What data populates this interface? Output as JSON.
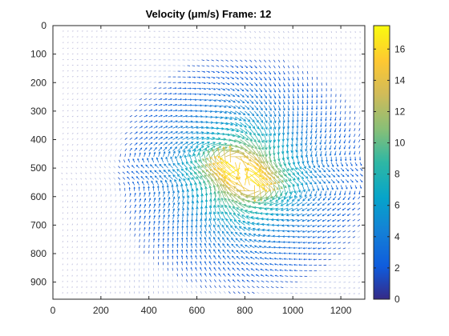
{
  "chart_data": {
    "type": "quiver",
    "title": "Velocity (μm/s) Frame: 12",
    "xlabel": "",
    "ylabel": "",
    "xlim": [
      0,
      1300
    ],
    "ylim": [
      0,
      960
    ],
    "y_reversed": true,
    "x_ticks": [
      "0",
      "200",
      "400",
      "600",
      "800",
      "1000",
      "1200"
    ],
    "y_ticks": [
      "0",
      "100",
      "200",
      "300",
      "400",
      "500",
      "600",
      "700",
      "800",
      "900"
    ],
    "colorbar": {
      "colormap": "parula",
      "range": [
        0,
        17.5
      ],
      "ticks": [
        "0",
        "2",
        "4",
        "6",
        "8",
        "10",
        "12",
        "14",
        "16"
      ]
    },
    "field": {
      "grid_spacing": 20,
      "x_range": [
        40,
        1280
      ],
      "y_range": [
        20,
        940
      ],
      "center": [
        790,
        520
      ],
      "peak_speed": 17,
      "description_of_pattern": "speed field peaking near center, swirling flow"
    }
  }
}
